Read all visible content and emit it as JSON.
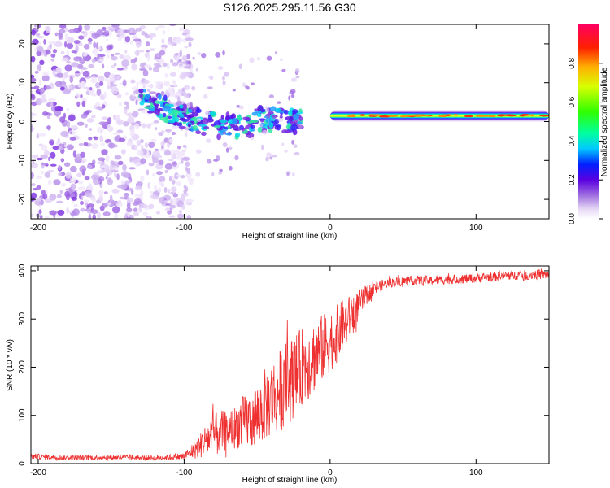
{
  "page_title": "S126.2025.295.11.56.G30",
  "chart_data": [
    {
      "type": "heatmap",
      "title": "S126.2025.295.11.56.G30",
      "xlabel": "Height of straight line (km)",
      "ylabel": "Frequency (Hz)",
      "xlim": [
        -205,
        150
      ],
      "ylim": [
        -25,
        25
      ],
      "xticks": [
        -200,
        -100,
        0,
        100
      ],
      "yticks": [
        -20,
        -10,
        0,
        10,
        20
      ],
      "colorbar": {
        "label": "Normalized spectral amplitude",
        "range": [
          0,
          1
        ],
        "ticks": [
          0.0,
          0.2,
          0.4,
          0.6,
          0.8
        ]
      },
      "features": [
        {
          "name": "noise",
          "x_range": [
            -205,
            -100
          ],
          "y_range": [
            -25,
            25
          ]
        },
        {
          "name": "transition-track",
          "x_range": [
            -130,
            -20
          ],
          "y_start": 6,
          "y_end": 0
        },
        {
          "name": "stable-track",
          "x_range": [
            0,
            150
          ],
          "y": 1.5
        }
      ]
    },
    {
      "type": "line",
      "xlabel": "Height of straight line (km)",
      "ylabel": "SNR (10 * v/v)",
      "xlim": [
        -205,
        150
      ],
      "ylim": [
        0,
        410
      ],
      "xticks": [
        -200,
        -100,
        0,
        100
      ],
      "yticks": [
        0,
        100,
        200,
        300,
        400
      ],
      "series": [
        {
          "name": "SNR",
          "color": "#ee3030",
          "x": [
            -205,
            -180,
            -150,
            -120,
            -110,
            -100,
            -95,
            -90,
            -85,
            -80,
            -75,
            -70,
            -65,
            -60,
            -55,
            -50,
            -45,
            -40,
            -35,
            -30,
            -25,
            -20,
            -15,
            -10,
            -5,
            0,
            5,
            10,
            15,
            20,
            25,
            30,
            35,
            40,
            50,
            60,
            70,
            80,
            90,
            100,
            110,
            120,
            130,
            140,
            150
          ],
          "y": [
            15,
            12,
            13,
            12,
            13,
            15,
            25,
            35,
            50,
            60,
            65,
            70,
            75,
            85,
            90,
            100,
            120,
            135,
            150,
            165,
            180,
            195,
            210,
            225,
            240,
            255,
            270,
            290,
            310,
            330,
            350,
            362,
            370,
            375,
            378,
            380,
            380,
            382,
            383,
            385,
            387,
            390,
            391,
            392,
            392
          ],
          "spread": [
            6,
            5,
            5,
            5,
            6,
            8,
            15,
            25,
            35,
            50,
            45,
            40,
            45,
            55,
            60,
            70,
            75,
            80,
            85,
            90,
            85,
            85,
            80,
            75,
            70,
            65,
            60,
            55,
            40,
            30,
            20,
            15,
            12,
            10,
            10,
            10,
            10,
            10,
            10,
            10,
            10,
            10,
            10,
            10,
            10
          ]
        }
      ]
    }
  ]
}
